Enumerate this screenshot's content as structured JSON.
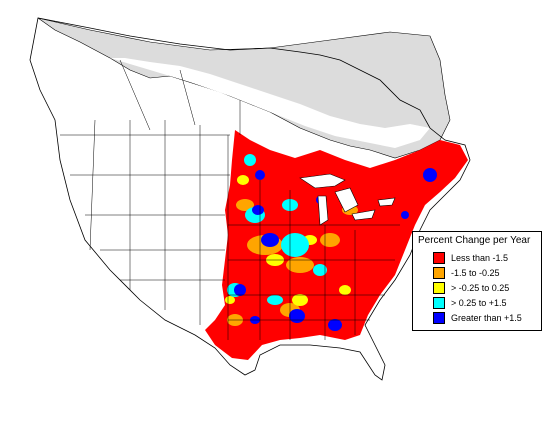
{
  "map": {
    "legend": {
      "title": "Percent Change per Year",
      "items": [
        {
          "label": "Less than -1.5",
          "color": "#ff0000"
        },
        {
          "label": "-1.5 to -0.25",
          "color": "#ffa500"
        },
        {
          "label": "> -0.25 to 0.25",
          "color": "#ffff00"
        },
        {
          "label": "> 0.25 to +1.5",
          "color": "#00ffff"
        },
        {
          "label": "Greater than +1.5",
          "color": "#0000ff"
        }
      ]
    },
    "colors": {
      "no_data_region": "#dcdcdc",
      "boundaries": "#000000",
      "water": "#ffffff"
    }
  }
}
